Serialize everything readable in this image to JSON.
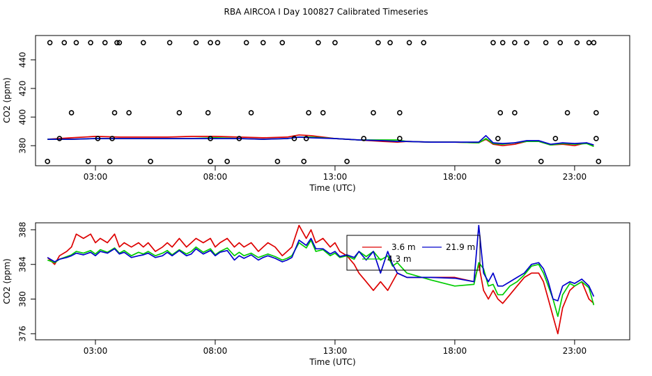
{
  "title": "RBA AIRCOA I  Day 100827  Calibrated Timeseries",
  "colors": {
    "red": "#dd0000",
    "green": "#00cc00",
    "blue": "#0000cc",
    "black": "#000000"
  },
  "chart_data": [
    {
      "type": "line",
      "xlabel": "Time (UTC)",
      "ylabel": "CO2 (ppm)",
      "xlim": [
        0.5,
        25.3
      ],
      "ylim": [
        366,
        457
      ],
      "xticks": [
        3,
        8,
        13,
        18,
        23
      ],
      "xtick_labels": [
        "03:00",
        "08:00",
        "13:00",
        "18:00",
        "23:00"
      ],
      "yticks": [
        380,
        400,
        420,
        440
      ],
      "ytick_labels": [
        "380",
        "400",
        "420",
        "440"
      ],
      "series": [
        {
          "color": "red",
          "x": [
            1.0,
            2.0,
            3.0,
            4.0,
            5.0,
            6.0,
            7.0,
            8.0,
            9.0,
            10.0,
            11.0,
            11.5,
            12.0,
            13.0,
            14.0,
            15.0,
            15.6,
            16.0,
            17.0,
            18.0,
            19.0,
            19.3,
            19.6,
            20.0,
            20.5,
            21.0,
            21.5,
            22.0,
            22.5,
            23.0,
            23.5,
            23.8
          ],
          "values": [
            384.5,
            385.5,
            386.5,
            386,
            386,
            386,
            386.5,
            386.5,
            386,
            385.5,
            386,
            387.5,
            387,
            385,
            384,
            383,
            382.5,
            383,
            382.5,
            382.5,
            382,
            384.5,
            381,
            380,
            381,
            383,
            383,
            380.5,
            381,
            380,
            382,
            379.5
          ]
        },
        {
          "color": "green",
          "x": [
            1.0,
            2.0,
            3.0,
            4.0,
            5.0,
            6.0,
            7.0,
            8.0,
            9.0,
            10.0,
            11.0,
            11.5,
            12.0,
            13.0,
            14.0,
            15.0,
            15.6,
            16.0,
            17.0,
            18.0,
            19.0,
            19.3,
            19.6,
            20.0,
            20.5,
            21.0,
            21.5,
            22.0,
            22.5,
            23.0,
            23.5,
            23.8
          ],
          "values": [
            384.5,
            384.5,
            385,
            385,
            385,
            385,
            385,
            385.5,
            385,
            384.5,
            385,
            386,
            386,
            385,
            384,
            384,
            384,
            383,
            382.5,
            382.5,
            382,
            385,
            381.5,
            381,
            382,
            383,
            383,
            380.5,
            381.5,
            381,
            381.5,
            379.5
          ]
        },
        {
          "color": "blue",
          "x": [
            1.0,
            2.0,
            3.0,
            4.0,
            5.0,
            6.0,
            7.0,
            8.0,
            9.0,
            10.0,
            11.0,
            11.5,
            12.0,
            13.0,
            14.0,
            15.0,
            15.6,
            16.0,
            17.0,
            18.0,
            19.0,
            19.3,
            19.6,
            20.0,
            20.5,
            21.0,
            21.5,
            22.0,
            22.5,
            23.0,
            23.5,
            23.8
          ],
          "values": [
            384.5,
            384.5,
            385,
            385,
            385,
            385,
            385,
            385,
            385,
            384.5,
            385,
            386,
            385.5,
            385,
            384,
            383.5,
            383,
            383,
            382.5,
            382.5,
            382.5,
            387,
            382,
            381.5,
            382,
            383.5,
            383.5,
            381,
            382,
            381.5,
            382,
            380.5
          ]
        }
      ],
      "points": [
        {
          "x": [
            1.1,
            1.7,
            2.2,
            2.8,
            3.4,
            3.9,
            4.0,
            5.0,
            6.1,
            7.2,
            7.8,
            8.1,
            9.3,
            10.0,
            10.8,
            12.3,
            13.0,
            14.8,
            15.3,
            16.1,
            16.7,
            19.6,
            20.0,
            20.5,
            21.0,
            21.8,
            22.4,
            23.1,
            23.6,
            23.8
          ],
          "values": [
            452,
            452,
            452,
            452,
            452,
            452,
            452,
            452,
            452,
            452,
            452,
            452,
            452,
            452,
            452,
            452,
            452,
            452,
            452,
            452,
            452,
            452,
            452,
            452,
            452,
            452,
            452,
            452,
            452,
            452
          ]
        },
        {
          "x": [
            2.0,
            3.8,
            4.4,
            6.5,
            7.7,
            9.5,
            11.9,
            12.5,
            14.6,
            15.7,
            19.9,
            20.5,
            22.7,
            23.9
          ],
          "values": [
            403,
            403,
            403,
            403,
            403,
            403,
            403,
            403,
            403,
            403,
            403,
            403,
            403,
            403
          ]
        },
        {
          "x": [
            1.5,
            3.1,
            3.7,
            7.8,
            9.0,
            11.3,
            11.8,
            14.2,
            15.7,
            19.8,
            22.2,
            23.9
          ],
          "values": [
            385,
            385,
            385,
            385,
            385,
            385,
            385,
            385,
            385,
            385,
            385,
            385
          ]
        },
        {
          "x": [
            1.0,
            2.7,
            3.6,
            5.3,
            7.8,
            8.5,
            10.6,
            11.7,
            13.5,
            19.8,
            21.6,
            24.0
          ],
          "values": [
            369,
            369,
            369,
            369,
            369,
            369,
            369,
            369,
            369,
            369,
            369,
            369
          ]
        }
      ]
    },
    {
      "type": "line",
      "xlabel": "Time (UTC)",
      "ylabel": "CO2 (ppm)",
      "xlim": [
        0.5,
        25.3
      ],
      "ylim": [
        375.3,
        388.8
      ],
      "xticks": [
        3,
        8,
        13,
        18,
        23
      ],
      "xtick_labels": [
        "03:00",
        "08:00",
        "13:00",
        "18:00",
        "23:00"
      ],
      "yticks": [
        376,
        380,
        384,
        388
      ],
      "ytick_labels": [
        "376",
        "380",
        "384",
        "388"
      ],
      "series": [
        {
          "name": "3.6 m",
          "color": "red",
          "x": [
            1.0,
            1.3,
            1.5,
            1.8,
            2.0,
            2.2,
            2.5,
            2.8,
            3.0,
            3.2,
            3.5,
            3.8,
            4.0,
            4.2,
            4.5,
            4.8,
            5.0,
            5.2,
            5.5,
            5.8,
            6.0,
            6.2,
            6.5,
            6.8,
            7.0,
            7.2,
            7.5,
            7.8,
            8.0,
            8.2,
            8.5,
            8.8,
            9.0,
            9.2,
            9.5,
            9.8,
            10.0,
            10.2,
            10.5,
            10.8,
            11.0,
            11.2,
            11.5,
            11.8,
            12.0,
            12.2,
            12.5,
            12.8,
            13.0,
            13.2,
            13.5,
            13.8,
            14.0,
            14.3,
            14.6,
            14.9,
            15.2,
            15.4,
            15.6,
            16.0,
            17.0,
            18.0,
            18.8,
            19.0,
            19.2,
            19.4,
            19.6,
            19.8,
            20.0,
            20.3,
            20.6,
            20.9,
            21.2,
            21.5,
            21.7,
            21.9,
            22.1,
            22.3,
            22.5,
            22.8,
            23.0,
            23.3,
            23.6,
            23.8
          ],
          "values": [
            384.8,
            384.0,
            385.0,
            385.5,
            386.0,
            387.5,
            387.0,
            387.5,
            386.5,
            387.0,
            386.5,
            387.5,
            386.0,
            386.5,
            386.0,
            386.5,
            386.0,
            386.5,
            385.5,
            386.0,
            386.5,
            386.0,
            387.0,
            386.0,
            386.5,
            387.0,
            386.5,
            387.0,
            386.0,
            386.5,
            387.0,
            386.0,
            386.5,
            386.0,
            386.5,
            385.5,
            386.0,
            386.5,
            386.0,
            385.0,
            385.5,
            386.0,
            388.5,
            387.0,
            388.0,
            386.5,
            387.0,
            386.0,
            386.5,
            385.5,
            385.0,
            384.0,
            383.0,
            382.0,
            381.0,
            382.0,
            381.0,
            382.0,
            383.0,
            382.5,
            382.5,
            382.5,
            382.0,
            384.0,
            381.0,
            380.0,
            381.0,
            380.0,
            379.5,
            380.5,
            381.5,
            382.5,
            383.0,
            383.0,
            382.0,
            380.0,
            378.0,
            376.0,
            379.0,
            381.0,
            381.5,
            382.0,
            380.0,
            379.5
          ]
        },
        {
          "name": "4.3 m",
          "color": "green",
          "x": [
            1.0,
            1.3,
            1.5,
            1.8,
            2.0,
            2.2,
            2.5,
            2.8,
            3.0,
            3.2,
            3.5,
            3.8,
            4.0,
            4.2,
            4.5,
            4.8,
            5.0,
            5.2,
            5.5,
            5.8,
            6.0,
            6.2,
            6.5,
            6.8,
            7.0,
            7.2,
            7.5,
            7.8,
            8.0,
            8.2,
            8.5,
            8.8,
            9.0,
            9.2,
            9.5,
            9.8,
            10.0,
            10.2,
            10.5,
            10.8,
            11.0,
            11.2,
            11.5,
            11.8,
            12.0,
            12.2,
            12.5,
            12.8,
            13.0,
            13.2,
            13.5,
            13.8,
            14.0,
            14.3,
            14.6,
            14.9,
            15.2,
            15.4,
            15.6,
            16.0,
            17.0,
            18.0,
            18.8,
            19.0,
            19.2,
            19.4,
            19.6,
            19.8,
            20.0,
            20.3,
            20.6,
            20.9,
            21.2,
            21.5,
            21.7,
            21.9,
            22.1,
            22.3,
            22.5,
            22.8,
            23.0,
            23.3,
            23.6,
            23.8
          ],
          "values": [
            384.5,
            384.2,
            384.6,
            384.9,
            385.1,
            385.5,
            385.3,
            385.6,
            385.2,
            385.7,
            385.4,
            385.9,
            385.3,
            385.6,
            385.0,
            385.4,
            385.2,
            385.5,
            385.0,
            385.3,
            385.6,
            385.1,
            385.7,
            385.2,
            385.5,
            386.0,
            385.4,
            385.8,
            385.1,
            385.5,
            385.9,
            385.0,
            385.4,
            385.0,
            385.3,
            384.8,
            385.0,
            385.2,
            384.9,
            384.5,
            384.7,
            385.0,
            386.5,
            385.9,
            386.8,
            385.5,
            385.7,
            385.0,
            385.3,
            384.8,
            385.0,
            384.6,
            385.5,
            384.9,
            385.5,
            384.5,
            385.0,
            383.8,
            384.2,
            383.0,
            382.2,
            381.5,
            381.7,
            384.2,
            383.5,
            381.5,
            381.7,
            380.5,
            380.5,
            381.5,
            382.0,
            382.8,
            383.8,
            384.0,
            383.0,
            381.5,
            380.0,
            378.0,
            380.5,
            381.8,
            381.5,
            382.0,
            381.3,
            379.3
          ]
        },
        {
          "name": "21.9 m",
          "color": "blue",
          "x": [
            1.0,
            1.3,
            1.5,
            1.8,
            2.0,
            2.2,
            2.5,
            2.8,
            3.0,
            3.2,
            3.5,
            3.8,
            4.0,
            4.2,
            4.5,
            4.8,
            5.0,
            5.2,
            5.5,
            5.8,
            6.0,
            6.2,
            6.5,
            6.8,
            7.0,
            7.2,
            7.5,
            7.8,
            8.0,
            8.2,
            8.5,
            8.8,
            9.0,
            9.2,
            9.5,
            9.8,
            10.0,
            10.2,
            10.5,
            10.8,
            11.0,
            11.2,
            11.5,
            11.8,
            12.0,
            12.2,
            12.5,
            12.8,
            13.0,
            13.2,
            13.5,
            13.8,
            14.0,
            14.3,
            14.6,
            14.9,
            15.2,
            15.4,
            15.6,
            16.0,
            17.0,
            18.0,
            18.8,
            19.0,
            19.2,
            19.4,
            19.6,
            19.8,
            20.0,
            20.3,
            20.6,
            20.9,
            21.2,
            21.5,
            21.7,
            21.9,
            22.1,
            22.3,
            22.5,
            22.8,
            23.0,
            23.3,
            23.6,
            23.8
          ],
          "values": [
            384.8,
            384.3,
            384.6,
            384.8,
            385.0,
            385.3,
            385.1,
            385.4,
            385.0,
            385.5,
            385.3,
            385.8,
            385.2,
            385.4,
            384.8,
            385.0,
            385.1,
            385.3,
            384.8,
            385.0,
            385.4,
            385.0,
            385.6,
            385.0,
            385.2,
            385.8,
            385.2,
            385.6,
            385.0,
            385.4,
            385.6,
            384.5,
            385.0,
            384.7,
            385.1,
            384.5,
            384.8,
            385.0,
            384.7,
            384.3,
            384.5,
            384.8,
            386.8,
            386.2,
            387.0,
            385.8,
            385.8,
            385.2,
            385.5,
            384.9,
            385.1,
            384.8,
            385.5,
            384.5,
            385.5,
            383.0,
            385.5,
            384.0,
            383.0,
            382.5,
            382.5,
            382.4,
            382.0,
            388.5,
            383.0,
            382.0,
            383.0,
            381.5,
            381.5,
            382.0,
            382.5,
            383.0,
            384.0,
            384.2,
            383.5,
            382.0,
            380.0,
            379.8,
            381.5,
            382.0,
            381.8,
            382.3,
            381.5,
            380.3
          ]
        }
      ],
      "legend": {
        "position": "top-center"
      }
    }
  ]
}
